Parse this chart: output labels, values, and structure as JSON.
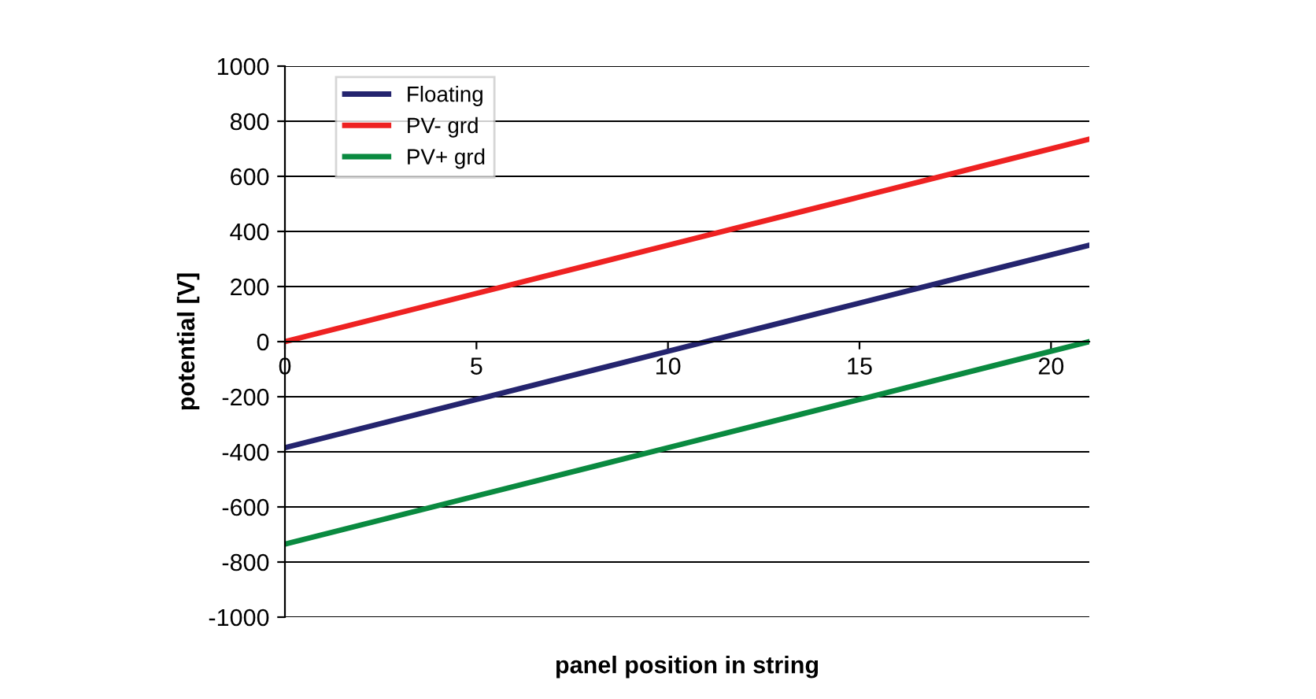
{
  "chart_data": {
    "type": "line",
    "xlabel": "panel position in string",
    "ylabel": "potential [V]",
    "x": [
      0,
      5,
      10,
      15,
      21
    ],
    "series": [
      {
        "name": "Floating",
        "color": "#24246e",
        "values": [
          -385,
          -210,
          -35,
          140,
          350
        ]
      },
      {
        "name": "PV- grd",
        "color": "#ee2222",
        "values": [
          0,
          175,
          350,
          525,
          735
        ]
      },
      {
        "name": "PV+ grd",
        "color": "#0a8a40",
        "values": [
          -735,
          -560,
          -385,
          -210,
          0
        ]
      }
    ],
    "xlim": [
      0,
      21
    ],
    "xticks": [
      0,
      5,
      10,
      15,
      20
    ],
    "ylim": [
      -1000,
      1000
    ],
    "yticks": [
      -1000,
      -800,
      -600,
      -400,
      -200,
      0,
      200,
      400,
      600,
      800,
      1000
    ],
    "grid": "y",
    "legend": "top left",
    "marker": "none",
    "line_style": "solid"
  }
}
